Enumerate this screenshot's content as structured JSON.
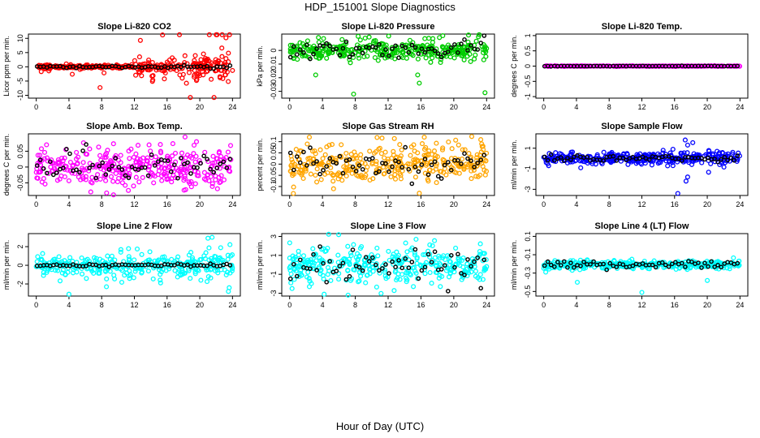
{
  "figure": {
    "title": "HDP_151001  Slope Diagnostics",
    "xlabel": "Hour of Day (UTC)"
  },
  "chart_data": [
    {
      "type": "scatter",
      "title": "Slope Li-820 CO2",
      "ylabel": "Licor ppm per min.",
      "color": "#ff0000",
      "xlim": [
        0,
        24
      ],
      "xticks": [
        0,
        4,
        8,
        12,
        16,
        20,
        24
      ],
      "ylim": [
        -11,
        11.5
      ],
      "yticks": [
        -10,
        -5,
        0,
        5,
        10
      ],
      "noise": [
        0.35,
        0.35,
        0.35,
        1.2,
        2.0,
        2.6
      ],
      "tail": 4.5,
      "outliers": [
        [
          7.8,
          -7.3
        ],
        [
          14.2,
          -5.1
        ],
        [
          19.6,
          -4.8
        ],
        [
          22.7,
          6.6
        ],
        [
          23.2,
          10.2
        ],
        [
          23.5,
          4.8
        ]
      ],
      "black_amp": 0.25
    },
    {
      "type": "scatter",
      "title": "Slope Li-820 Pressure",
      "ylabel": "kPa per min.",
      "color": "#00cc00",
      "xlim": [
        0,
        24
      ],
      "xticks": [
        0,
        4,
        8,
        12,
        16,
        20,
        24
      ],
      "ylim": [
        -0.035,
        0.012
      ],
      "yticks": [
        -0.03,
        -0.02,
        -0.01,
        0
      ],
      "noise": [
        0.003,
        0.0035,
        0.0035,
        0.0035,
        0.0035,
        0.0035
      ],
      "tail": 1.8,
      "outliers": [
        [
          7.8,
          -0.032
        ],
        [
          15.6,
          -0.018
        ],
        [
          15.8,
          -0.024
        ],
        [
          23.8,
          -0.031
        ],
        [
          9.2,
          0.009
        ],
        [
          23.0,
          0.01
        ],
        [
          2.2,
          0.007
        ]
      ],
      "black_amp": 0.0035
    },
    {
      "type": "scatter",
      "title": "Slope Li-820 Temp.",
      "ylabel": "degrees C per min.",
      "color": "#ff00ff",
      "xlim": [
        0,
        24
      ],
      "xticks": [
        0,
        4,
        8,
        12,
        16,
        20,
        24
      ],
      "ylim": [
        -1.05,
        1.05
      ],
      "yticks": [
        -1,
        -0.5,
        0,
        0.5,
        1
      ],
      "noise": [
        0.004,
        0.004,
        0.004,
        0.004,
        0.004,
        0.004
      ],
      "tail": 1,
      "outliers": [],
      "black_amp": 0.003
    },
    {
      "type": "scatter",
      "title": "Slope Amb. Box Temp.",
      "ylabel": "degrees C per min.",
      "color": "#ff00ff",
      "xlim": [
        0,
        24
      ],
      "xticks": [
        0,
        4,
        8,
        12,
        16,
        20,
        24
      ],
      "ylim": [
        -0.09,
        0.105
      ],
      "yticks": [
        -0.05,
        0,
        0.05
      ],
      "noise": [
        0.03,
        0.03,
        0.03,
        0.03,
        0.03,
        0.03
      ],
      "tail": 1.6,
      "outliers": [
        [
          18.2,
          0.095
        ],
        [
          19.6,
          0.08
        ],
        [
          13.8,
          0.07
        ],
        [
          8.6,
          -0.082
        ]
      ],
      "black_amp": 0.025
    },
    {
      "type": "scatter",
      "title": "Slope Gas Stream RH",
      "ylabel": "percent per min.",
      "color": "#ffa500",
      "xlim": [
        0,
        24
      ],
      "xticks": [
        0,
        4,
        8,
        12,
        16,
        20,
        24
      ],
      "ylim": [
        -0.14,
        0.135
      ],
      "yticks": [
        -0.1,
        -0.05,
        0,
        0.05,
        0.1
      ],
      "noise": [
        0.04,
        0.04,
        0.04,
        0.04,
        0.04,
        0.04
      ],
      "tail": 1.6,
      "outliers": [
        [
          2.4,
          0.12
        ],
        [
          15.8,
          -0.13
        ],
        [
          16.4,
          0.12
        ],
        [
          23.4,
          0.09
        ]
      ],
      "black_amp": 0.03
    },
    {
      "type": "scatter",
      "title": "Slope Sample Flow",
      "ylabel": "ml/min per min.",
      "color": "#0000ff",
      "xlim": [
        0,
        24
      ],
      "xticks": [
        0,
        4,
        8,
        12,
        16,
        20,
        24
      ],
      "ylim": [
        -3.6,
        2.4
      ],
      "yticks": [
        -3,
        -1,
        1
      ],
      "noise": [
        0.25,
        0.25,
        0.25,
        0.25,
        0.3,
        0.3
      ],
      "tail": 1.8,
      "outliers": [
        [
          0.6,
          -0.7
        ],
        [
          16.4,
          -3.4
        ],
        [
          17.4,
          -2.2
        ],
        [
          17.6,
          -1.8
        ],
        [
          17.3,
          1.8
        ],
        [
          17.6,
          1.3
        ],
        [
          15.8,
          0.9
        ],
        [
          21.2,
          0.7
        ]
      ],
      "black_amp": 0.15
    },
    {
      "type": "scatter",
      "title": "Slope Line 2 Flow",
      "ylabel": "ml/min per min.",
      "color": "#00ffff",
      "xlim": [
        0,
        24
      ],
      "xticks": [
        0,
        4,
        8,
        12,
        16,
        20,
        24
      ],
      "ylim": [
        -3.3,
        3.4
      ],
      "yticks": [
        -2,
        0,
        2
      ],
      "noise": [
        0.5,
        0.5,
        0.5,
        0.5,
        0.6,
        0.8
      ],
      "tail": 2,
      "outliers": [
        [
          4.0,
          -3.1
        ],
        [
          21.0,
          2.9
        ],
        [
          21.5,
          3.0
        ],
        [
          23.5,
          -2.8
        ],
        [
          23.6,
          -2.4
        ],
        [
          23.8,
          1.0
        ]
      ],
      "black_amp": 0.08
    },
    {
      "type": "scatter",
      "title": "Slope Line 3 Flow",
      "ylabel": "ml/min per min.",
      "color": "#00ffff",
      "xlim": [
        0,
        24
      ],
      "xticks": [
        0,
        4,
        8,
        12,
        16,
        20,
        24
      ],
      "ylim": [
        -3.3,
        3.3
      ],
      "yticks": [
        -3,
        -1,
        1,
        3
      ],
      "noise": [
        0.9,
        0.9,
        0.9,
        0.9,
        0.9,
        0.9
      ],
      "tail": 1.8,
      "outliers": [
        [
          0.3,
          -2.5
        ],
        [
          4.2,
          -3.1
        ],
        [
          15.4,
          2.7
        ]
      ],
      "black_amp": 0.9
    },
    {
      "type": "scatter",
      "title": "Slope Line 4 (LT) Flow",
      "ylabel": "ml/min per min.",
      "color": "#00ffff",
      "xlim": [
        0,
        24
      ],
      "xticks": [
        0,
        4,
        8,
        12,
        16,
        20,
        24
      ],
      "ylim": [
        -0.55,
        0.13
      ],
      "yticks": [
        -0.5,
        -0.3,
        -0.1,
        0.1
      ],
      "noise": [
        0.02,
        0.02,
        0.02,
        0.02,
        0.02,
        0.02
      ],
      "tail": 1.5,
      "outliers": [
        [
          4.1,
          -0.4
        ],
        [
          12.0,
          -0.51
        ],
        [
          20.0,
          -0.38
        ]
      ],
      "black_amp": 0.02
    }
  ]
}
